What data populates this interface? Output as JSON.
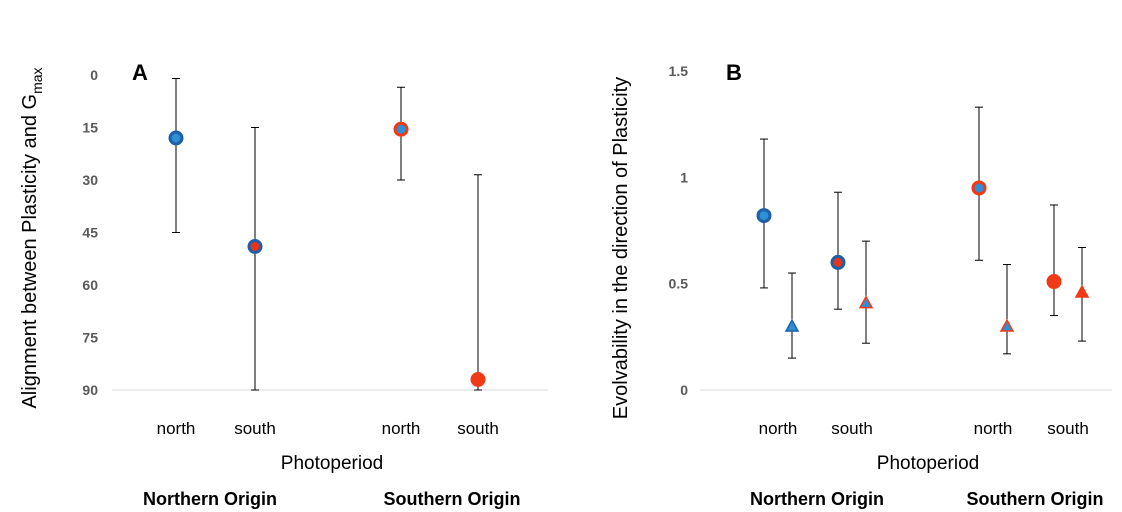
{
  "chart_data": [
    {
      "type": "scatter",
      "panel_label": "A",
      "ylabel": "Alignment between Plasticity and G",
      "ylabel_sub": "max",
      "xlabel": "Photoperiod",
      "ylim": [
        0,
        90
      ],
      "y_inverted": true,
      "yticks": [
        "0",
        "15",
        "30",
        "45",
        "60",
        "75",
        "90"
      ],
      "categories": [
        "north",
        "south",
        "north",
        "south"
      ],
      "groups": [
        "Northern Origin",
        "Southern Origin"
      ],
      "grid": false,
      "points": [
        {
          "category_index": 0,
          "y": 18,
          "low": 1,
          "high": 45,
          "marker": "circle",
          "fill": "#2E8FD4",
          "stroke": "#1F5FA8"
        },
        {
          "category_index": 1,
          "y": 49,
          "low": 15,
          "high": 90,
          "marker": "circle",
          "fill": "#E8331C",
          "stroke": "#1F5FA8"
        },
        {
          "category_index": 2,
          "y": 15.5,
          "low": 3.5,
          "high": 30,
          "marker": "circle",
          "fill": "#2E8FD4",
          "stroke": "#F03A17"
        },
        {
          "category_index": 3,
          "y": 87,
          "low": 28.5,
          "high": 90,
          "marker": "circle",
          "fill": "#F03A17",
          "stroke": "#F03A17"
        }
      ]
    },
    {
      "type": "scatter",
      "panel_label": "B",
      "ylabel": "Evolvability in the direction of Plasticity",
      "xlabel": "Photoperiod",
      "ylim": [
        0,
        1.5
      ],
      "yticks": [
        "0",
        "0.5",
        "1",
        "1.5"
      ],
      "categories": [
        "north",
        "south",
        "north",
        "south"
      ],
      "groups": [
        "Northern Origin",
        "Southern Origin"
      ],
      "grid": false,
      "points": [
        {
          "category_index": 0,
          "offset": "left",
          "y": 0.82,
          "low": 0.48,
          "high": 1.18,
          "marker": "circle",
          "fill": "#2E8FD4",
          "stroke": "#1F5FA8"
        },
        {
          "category_index": 0,
          "offset": "right",
          "y": 0.3,
          "low": 0.15,
          "high": 0.55,
          "marker": "triangle",
          "fill": "#2E8FD4",
          "stroke": "#1F5FA8"
        },
        {
          "category_index": 1,
          "offset": "left",
          "y": 0.6,
          "low": 0.38,
          "high": 0.93,
          "marker": "circle",
          "fill": "#E8331C",
          "stroke": "#1F5FA8"
        },
        {
          "category_index": 1,
          "offset": "right",
          "y": 0.41,
          "low": 0.22,
          "high": 0.7,
          "marker": "triangle",
          "fill": "#2E8FD4",
          "stroke": "#F03A17"
        },
        {
          "category_index": 2,
          "offset": "left",
          "y": 0.95,
          "low": 0.61,
          "high": 1.33,
          "marker": "circle",
          "fill": "#2E8FD4",
          "stroke": "#F03A17"
        },
        {
          "category_index": 2,
          "offset": "right",
          "y": 0.3,
          "low": 0.17,
          "high": 0.59,
          "marker": "triangle",
          "fill": "#2E8FD4",
          "stroke": "#F03A17"
        },
        {
          "category_index": 3,
          "offset": "left",
          "y": 0.51,
          "low": 0.35,
          "high": 0.87,
          "marker": "circle",
          "fill": "#F03A17",
          "stroke": "#F03A17"
        },
        {
          "category_index": 3,
          "offset": "right",
          "y": 0.46,
          "low": 0.23,
          "high": 0.67,
          "marker": "triangle",
          "fill": "#F03A17",
          "stroke": "#F03A17"
        }
      ]
    }
  ]
}
